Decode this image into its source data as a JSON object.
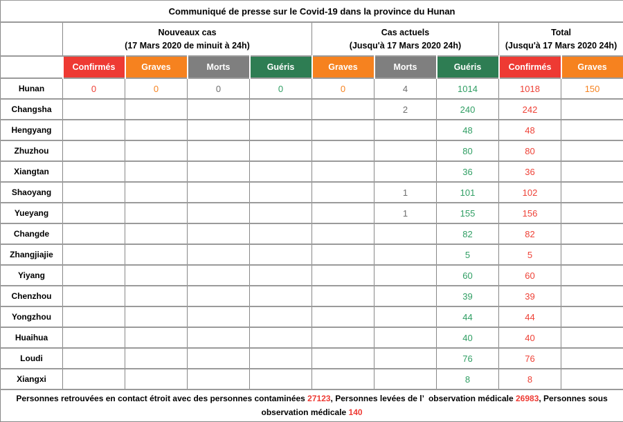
{
  "title": "Communiqué de presse sur le Covid-19 dans la province du Hunan",
  "column_groups": [
    {
      "title": "Nouveaux cas",
      "subtitle": "(17 Mars 2020 de minuit à 24h)"
    },
    {
      "title": "Cas actuels",
      "subtitle": "(Jusqu'à 17 Mars 2020 24h)"
    },
    {
      "title": "Total",
      "subtitle": "(Jusqu'à 17 Mars 2020 24h)"
    }
  ],
  "columns": [
    {
      "label": "Confirmés",
      "header_bg": "#ee3a33",
      "value_color": "#ee4136"
    },
    {
      "label": "Graves",
      "header_bg": "#f6821f",
      "value_color": "#f6821f"
    },
    {
      "label": "Morts",
      "header_bg": "#7f7f7f",
      "value_color": "#6e6e6e"
    },
    {
      "label": "Guéris",
      "header_bg": "#2e7d53",
      "value_color": "#2f9e63"
    },
    {
      "label": "Graves",
      "header_bg": "#f6821f",
      "value_color": "#f6821f"
    },
    {
      "label": "Morts",
      "header_bg": "#7f7f7f",
      "value_color": "#6e6e6e"
    },
    {
      "label": "Guéris",
      "header_bg": "#2e7d53",
      "value_color": "#2f9e63"
    },
    {
      "label": "Confirmés",
      "header_bg": "#ee3a33",
      "value_color": "#ee4136"
    },
    {
      "label": "Graves",
      "header_bg": "#f6821f",
      "value_color": "#f6821f"
    }
  ],
  "rows": [
    {
      "region": "Hunan",
      "values": [
        "0",
        "0",
        "0",
        "0",
        "0",
        "4",
        "1014",
        "1018",
        "150"
      ]
    },
    {
      "region": "Changsha",
      "values": [
        "",
        "",
        "",
        "",
        "",
        "2",
        "240",
        "242",
        ""
      ]
    },
    {
      "region": "Hengyang",
      "values": [
        "",
        "",
        "",
        "",
        "",
        "",
        "48",
        "48",
        ""
      ]
    },
    {
      "region": "Zhuzhou",
      "values": [
        "",
        "",
        "",
        "",
        "",
        "",
        "80",
        "80",
        ""
      ]
    },
    {
      "region": "Xiangtan",
      "values": [
        "",
        "",
        "",
        "",
        "",
        "",
        "36",
        "36",
        ""
      ]
    },
    {
      "region": "Shaoyang",
      "values": [
        "",
        "",
        "",
        "",
        "",
        "1",
        "101",
        "102",
        ""
      ]
    },
    {
      "region": "Yueyang",
      "values": [
        "",
        "",
        "",
        "",
        "",
        "1",
        "155",
        "156",
        ""
      ]
    },
    {
      "region": "Changde",
      "values": [
        "",
        "",
        "",
        "",
        "",
        "",
        "82",
        "82",
        ""
      ]
    },
    {
      "region": "Zhangjiajie",
      "values": [
        "",
        "",
        "",
        "",
        "",
        "",
        "5",
        "5",
        ""
      ]
    },
    {
      "region": "Yiyang",
      "values": [
        "",
        "",
        "",
        "",
        "",
        "",
        "60",
        "60",
        ""
      ]
    },
    {
      "region": "Chenzhou",
      "values": [
        "",
        "",
        "",
        "",
        "",
        "",
        "39",
        "39",
        ""
      ]
    },
    {
      "region": "Yongzhou",
      "values": [
        "",
        "",
        "",
        "",
        "",
        "",
        "44",
        "44",
        ""
      ]
    },
    {
      "region": "Huaihua",
      "values": [
        "",
        "",
        "",
        "",
        "",
        "",
        "40",
        "40",
        ""
      ]
    },
    {
      "region": "Loudi",
      "values": [
        "",
        "",
        "",
        "",
        "",
        "",
        "76",
        "76",
        ""
      ]
    },
    {
      "region": "Xiangxi",
      "values": [
        "",
        "",
        "",
        "",
        "",
        "",
        "8",
        "8",
        ""
      ]
    }
  ],
  "footer_segments": [
    {
      "text": "Personnes retrouvées en contact étroit avec des personnes contaminées ",
      "highlight": false
    },
    {
      "text": "27123",
      "highlight": true
    },
    {
      "text": ", Personnes levées de l’ observation médicale ",
      "highlight": false
    },
    {
      "text": "26983",
      "highlight": true
    },
    {
      "text": ", Personnes sous observation médicale ",
      "highlight": false
    },
    {
      "text": "140",
      "highlight": true
    }
  ],
  "highlight_color": "#ee3a33"
}
